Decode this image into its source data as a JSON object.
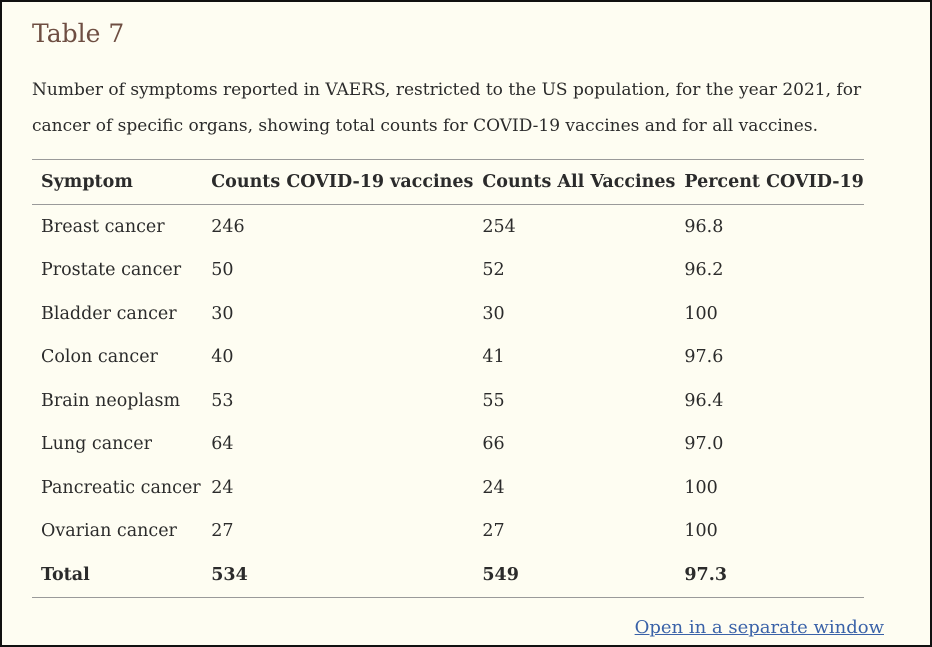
{
  "title": "Table 7",
  "caption": "Number of symptoms reported in VAERS, restricted to the US population, for the year 2021, for cancer of specific organs, showing total counts for COVID-19 vaccines and for all vaccines.",
  "table": {
    "headers": [
      "Symptom",
      "Counts COVID-19 vaccines",
      "Counts All Vaccines",
      "Percent COVID-19"
    ],
    "rows": [
      [
        "Breast cancer",
        "246",
        "254",
        "96.8"
      ],
      [
        "Prostate cancer",
        "50",
        "52",
        "96.2"
      ],
      [
        "Bladder cancer",
        "30",
        "30",
        "100"
      ],
      [
        "Colon cancer",
        "40",
        "41",
        "97.6"
      ],
      [
        "Brain neoplasm",
        "53",
        "55",
        "96.4"
      ],
      [
        "Lung cancer",
        "64",
        "66",
        "97.0"
      ],
      [
        "Pancreatic cancer",
        "24",
        "24",
        "100"
      ],
      [
        "Ovarian cancer",
        "27",
        "27",
        "100"
      ]
    ],
    "total": [
      "Total",
      "534",
      "549",
      "97.3"
    ]
  },
  "link_text": "Open in a separate window",
  "colors": {
    "background": "#fefdf2",
    "title": "#6e4e42",
    "text": "#2b2b2b",
    "link": "#3a62a8",
    "rule": "#9a9a9a"
  }
}
